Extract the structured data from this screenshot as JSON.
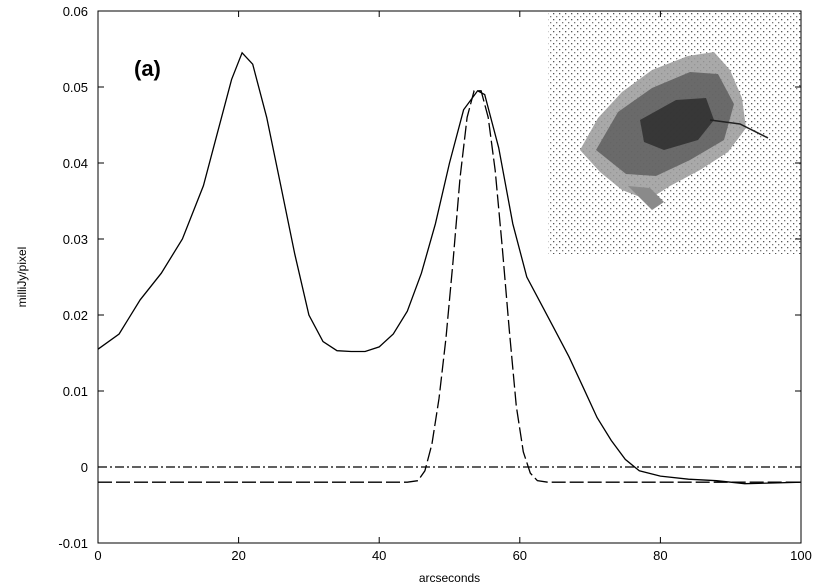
{
  "chart_data": {
    "type": "line",
    "title": "",
    "panel_label": "(a)",
    "xlabel": "arcseconds",
    "ylabel": "milliJy/pixel",
    "xlim": [
      0,
      100
    ],
    "ylim": [
      -0.01,
      0.06
    ],
    "x_ticks": [
      0,
      20,
      40,
      60,
      80,
      100
    ],
    "y_ticks": [
      -0.01,
      0,
      0.01,
      0.02,
      0.03,
      0.04,
      0.05,
      0.06
    ],
    "y_tick_labels": [
      "-0.01",
      "0",
      "0.01",
      "0.02",
      "0.03",
      "0.04",
      "0.05",
      "0.06"
    ],
    "grid": false,
    "series": [
      {
        "style": "solid",
        "points": [
          [
            0,
            0.0155
          ],
          [
            3,
            0.0175
          ],
          [
            6,
            0.022
          ],
          [
            9,
            0.0255
          ],
          [
            12,
            0.03
          ],
          [
            15,
            0.037
          ],
          [
            17,
            0.044
          ],
          [
            19,
            0.051
          ],
          [
            20.5,
            0.0545
          ],
          [
            22,
            0.053
          ],
          [
            24,
            0.046
          ],
          [
            26,
            0.037
          ],
          [
            28,
            0.028
          ],
          [
            30,
            0.02
          ],
          [
            32,
            0.0165
          ],
          [
            34,
            0.0153
          ],
          [
            36,
            0.0152
          ],
          [
            38,
            0.0152
          ],
          [
            40,
            0.0158
          ],
          [
            42,
            0.0175
          ],
          [
            44,
            0.0205
          ],
          [
            46,
            0.0255
          ],
          [
            48,
            0.032
          ],
          [
            50,
            0.04
          ],
          [
            52,
            0.047
          ],
          [
            54,
            0.0495
          ],
          [
            55,
            0.049
          ],
          [
            57,
            0.042
          ],
          [
            59,
            0.032
          ],
          [
            61,
            0.025
          ],
          [
            63,
            0.0215
          ],
          [
            65,
            0.018
          ],
          [
            67,
            0.0145
          ],
          [
            69,
            0.0105
          ],
          [
            71,
            0.0065
          ],
          [
            73,
            0.0035
          ],
          [
            75,
            0.001
          ],
          [
            77,
            -0.0005
          ],
          [
            80,
            -0.0012
          ],
          [
            84,
            -0.0016
          ],
          [
            88,
            -0.0018
          ],
          [
            92,
            -0.0022
          ],
          [
            96,
            -0.0021
          ],
          [
            100,
            -0.002
          ]
        ]
      },
      {
        "style": "dashed",
        "points": [
          [
            0,
            -0.002
          ],
          [
            44,
            -0.002
          ],
          [
            45.5,
            -0.0018
          ],
          [
            46.5,
            -0.0005
          ],
          [
            47.5,
            0.003
          ],
          [
            48.5,
            0.009
          ],
          [
            49.5,
            0.017
          ],
          [
            50.5,
            0.027
          ],
          [
            51.5,
            0.038
          ],
          [
            52.5,
            0.046
          ],
          [
            53.5,
            0.0495
          ],
          [
            54.5,
            0.0495
          ],
          [
            55.5,
            0.046
          ],
          [
            56.5,
            0.039
          ],
          [
            57.5,
            0.029
          ],
          [
            58.5,
            0.018
          ],
          [
            59.5,
            0.008
          ],
          [
            60.5,
            0.002
          ],
          [
            61.5,
            -0.0008
          ],
          [
            62.5,
            -0.0018
          ],
          [
            64,
            -0.002
          ],
          [
            100,
            -0.002
          ]
        ]
      },
      {
        "style": "dash-dot",
        "points": [
          [
            0,
            0
          ],
          [
            100,
            0
          ]
        ]
      }
    ],
    "inset": {
      "description": "grayscale image inset, upper right"
    }
  }
}
